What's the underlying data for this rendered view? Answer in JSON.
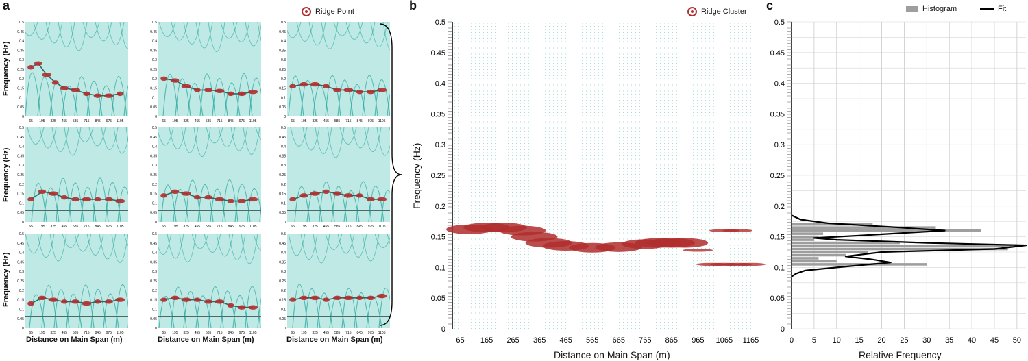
{
  "panels": {
    "a": "a",
    "b": "b",
    "c": "c"
  },
  "legend": {
    "ridge_point": "Ridge Point",
    "ridge_cluster": "Ridge Cluster",
    "histogram": "Histogram",
    "fit": "Fit"
  },
  "colors": {
    "teal": "#2aa8a0",
    "ridge": "#b02e2e",
    "hist": "#9e9e9e",
    "fit": "#000000"
  },
  "chart_data": [
    {
      "id": "a",
      "type": "heatmap",
      "layout": "3x3 grid of spectrograms",
      "ylabel": "Frequency (Hz)",
      "xlabel": "Distance on Main Span (m)",
      "yticks": [
        "0",
        "0.05",
        "0.1",
        "0.15",
        "0.2",
        "0.25",
        "0.3",
        "0.35",
        "0.4",
        "0.45",
        "0.5"
      ],
      "ylim": [
        0,
        0.5
      ],
      "xticks": [
        "65",
        "195",
        "325",
        "455",
        "585",
        "715",
        "845",
        "975",
        "1105"
      ],
      "xlim": [
        0,
        1200
      ],
      "ridge_tracks": [
        [
          [
            65,
            0.26
          ],
          [
            150,
            0.28
          ],
          [
            250,
            0.22
          ],
          [
            350,
            0.18
          ],
          [
            455,
            0.15
          ],
          [
            585,
            0.14
          ],
          [
            715,
            0.12
          ],
          [
            845,
            0.11
          ],
          [
            975,
            0.11
          ],
          [
            1105,
            0.12
          ]
        ],
        [
          [
            65,
            0.2
          ],
          [
            195,
            0.19
          ],
          [
            325,
            0.16
          ],
          [
            455,
            0.14
          ],
          [
            585,
            0.14
          ],
          [
            715,
            0.135
          ],
          [
            845,
            0.12
          ],
          [
            975,
            0.12
          ],
          [
            1105,
            0.13
          ]
        ],
        [
          [
            65,
            0.16
          ],
          [
            195,
            0.17
          ],
          [
            325,
            0.17
          ],
          [
            455,
            0.16
          ],
          [
            585,
            0.14
          ],
          [
            715,
            0.14
          ],
          [
            845,
            0.13
          ],
          [
            975,
            0.13
          ],
          [
            1105,
            0.14
          ]
        ],
        [
          [
            65,
            0.12
          ],
          [
            195,
            0.16
          ],
          [
            325,
            0.15
          ],
          [
            455,
            0.13
          ],
          [
            585,
            0.12
          ],
          [
            715,
            0.12
          ],
          [
            845,
            0.12
          ],
          [
            975,
            0.12
          ],
          [
            1105,
            0.11
          ]
        ],
        [
          [
            65,
            0.14
          ],
          [
            195,
            0.16
          ],
          [
            325,
            0.15
          ],
          [
            455,
            0.13
          ],
          [
            585,
            0.13
          ],
          [
            715,
            0.12
          ],
          [
            845,
            0.11
          ],
          [
            975,
            0.11
          ],
          [
            1105,
            0.12
          ]
        ],
        [
          [
            65,
            0.12
          ],
          [
            195,
            0.14
          ],
          [
            325,
            0.15
          ],
          [
            455,
            0.16
          ],
          [
            585,
            0.15
          ],
          [
            715,
            0.14
          ],
          [
            845,
            0.14
          ],
          [
            975,
            0.12
          ],
          [
            1105,
            0.12
          ]
        ],
        [
          [
            65,
            0.13
          ],
          [
            195,
            0.16
          ],
          [
            325,
            0.15
          ],
          [
            455,
            0.14
          ],
          [
            585,
            0.14
          ],
          [
            715,
            0.13
          ],
          [
            845,
            0.14
          ],
          [
            975,
            0.14
          ],
          [
            1105,
            0.15
          ]
        ],
        [
          [
            65,
            0.15
          ],
          [
            195,
            0.16
          ],
          [
            325,
            0.15
          ],
          [
            455,
            0.15
          ],
          [
            585,
            0.14
          ],
          [
            715,
            0.14
          ],
          [
            845,
            0.12
          ],
          [
            975,
            0.11
          ],
          [
            1105,
            0.11
          ]
        ],
        [
          [
            65,
            0.15
          ],
          [
            195,
            0.16
          ],
          [
            325,
            0.16
          ],
          [
            455,
            0.15
          ],
          [
            585,
            0.16
          ],
          [
            715,
            0.16
          ],
          [
            845,
            0.16
          ],
          [
            975,
            0.16
          ],
          [
            1105,
            0.17
          ]
        ]
      ]
    },
    {
      "id": "b",
      "type": "scatter",
      "ylabel": "Frequency (Hz)",
      "xlabel": "Distance on Main Span (m)",
      "yticks": [
        "0",
        "0.05",
        "0.1",
        "0.15",
        "0.2",
        "0.25",
        "0.3",
        "0.35",
        "0.4",
        "0.45",
        "0.5"
      ],
      "ylim": [
        0,
        0.5
      ],
      "xticks": [
        "65",
        "165",
        "265",
        "365",
        "465",
        "565",
        "665",
        "765",
        "865",
        "965",
        "1065",
        "1165"
      ],
      "xlim": [
        35,
        1195
      ],
      "series": [
        {
          "name": "Ridge Cluster",
          "points": [
            [
              100,
              0.162
            ],
            [
              165,
              0.165
            ],
            [
              230,
              0.165
            ],
            [
              300,
              0.16
            ],
            [
              345,
              0.15
            ],
            [
              400,
              0.14
            ],
            [
              465,
              0.135
            ],
            [
              565,
              0.132
            ],
            [
              665,
              0.133
            ],
            [
              765,
              0.138
            ],
            [
              815,
              0.14
            ],
            [
              865,
              0.14
            ],
            [
              915,
              0.14
            ],
            [
              965,
              0.128
            ],
            [
              1015,
              0.105
            ],
            [
              1065,
              0.105
            ],
            [
              1115,
              0.105
            ],
            [
              1165,
              0.105
            ],
            [
              1065,
              0.16
            ],
            [
              1115,
              0.16
            ]
          ]
        }
      ]
    },
    {
      "id": "c",
      "type": "bar",
      "orientation": "horizontal",
      "xlabel": "Relative Frequency",
      "ylabel": "",
      "xticks": [
        "0",
        "5",
        "10",
        "15",
        "20",
        "25",
        "30",
        "35",
        "40",
        "45",
        "50"
      ],
      "xlim": [
        0,
        52
      ],
      "yticks": [
        "0",
        "0.05",
        "0.1",
        "0.15",
        "0.2",
        "0.25",
        "0.3",
        "0.35",
        "0.4",
        "0.45",
        "0.5"
      ],
      "ylim": [
        0,
        0.5
      ],
      "bin_centers": [
        0.105,
        0.11,
        0.115,
        0.12,
        0.125,
        0.13,
        0.135,
        0.14,
        0.145,
        0.15,
        0.155,
        0.16,
        0.165,
        0.17
      ],
      "values": [
        30,
        10,
        6,
        12,
        17,
        48,
        49,
        24,
        5,
        6,
        7,
        42,
        32,
        18
      ],
      "fit": [
        [
          0,
          0.085
        ],
        [
          1,
          0.09
        ],
        [
          3,
          0.095
        ],
        [
          10,
          0.1
        ],
        [
          22,
          0.108
        ],
        [
          18,
          0.113
        ],
        [
          12,
          0.118
        ],
        [
          20,
          0.125
        ],
        [
          45,
          0.13
        ],
        [
          52,
          0.136
        ],
        [
          30,
          0.14
        ],
        [
          10,
          0.145
        ],
        [
          5,
          0.148
        ],
        [
          15,
          0.152
        ],
        [
          34,
          0.16
        ],
        [
          22,
          0.166
        ],
        [
          8,
          0.172
        ],
        [
          2,
          0.178
        ],
        [
          0,
          0.185
        ]
      ]
    }
  ]
}
